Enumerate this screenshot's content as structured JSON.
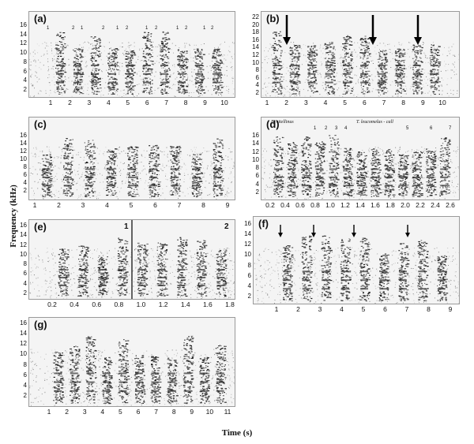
{
  "axis_labels": {
    "y": "Frequency (kHz)",
    "x": "Time (s)"
  },
  "chart_data": [
    {
      "type": "spectrogram",
      "panel": "(a)",
      "y_ticks": [
        "16",
        "14",
        "12",
        "10",
        "8",
        "6",
        "4",
        "2"
      ],
      "x_ticks": [
        "1",
        "2",
        "3",
        "4",
        "5",
        "6",
        "7",
        "8",
        "9",
        "10"
      ],
      "call_labels": [
        "1",
        "2",
        "1",
        "2",
        "1",
        "2",
        "1",
        "2",
        "1",
        "2",
        "1",
        "2"
      ]
    },
    {
      "type": "spectrogram",
      "panel": "(b)",
      "y_ticks": [
        "22",
        "20",
        "18",
        "16",
        "14",
        "12",
        "10",
        "8",
        "6",
        "4",
        "2"
      ],
      "x_ticks": [
        "1",
        "2",
        "3",
        "4",
        "5",
        "6",
        "7",
        "8",
        "9",
        "10"
      ]
    },
    {
      "type": "spectrogram",
      "panel": "(c)",
      "y_ticks": [
        "16",
        "14",
        "12",
        "10",
        "8",
        "6",
        "4",
        "2"
      ],
      "x_ticks": [
        "1",
        "2",
        "3",
        "4",
        "5",
        "6",
        "7",
        "8",
        "9"
      ]
    },
    {
      "type": "spectrogram",
      "panel": "(d)",
      "y_ticks": [
        "16",
        "14",
        "12",
        "10",
        "8",
        "6",
        "4",
        "2"
      ],
      "x_ticks": [
        "0.2",
        "0.4",
        "0.6",
        "0.8",
        "1.0",
        "1.2",
        "1.4",
        "1.6",
        "1.8",
        "2.0",
        "2.2",
        "2.4",
        "2.6"
      ],
      "species_labels": [
        "B. vitellinus",
        "T. leucomelas - call"
      ],
      "call_labels": [
        "1",
        "2",
        "3",
        "4",
        "5",
        "6",
        "7"
      ]
    },
    {
      "type": "spectrogram",
      "panel": "(e)",
      "y_ticks": [
        "16",
        "14",
        "12",
        "10",
        "8",
        "6",
        "4",
        "2"
      ],
      "x_ticks": [
        "0.2",
        "0.4",
        "0.6",
        "0.8",
        "1.0",
        "1.2",
        "1.4",
        "1.6",
        "1.8"
      ],
      "section_labels": [
        "1",
        "2"
      ]
    },
    {
      "type": "spectrogram",
      "panel": "(f)",
      "y_ticks": [
        "16",
        "14",
        "12",
        "10",
        "8",
        "6",
        "4",
        "2"
      ],
      "x_ticks": [
        "1",
        "2",
        "3",
        "4",
        "5",
        "6",
        "7",
        "8",
        "9"
      ]
    },
    {
      "type": "spectrogram",
      "panel": "(g)",
      "y_ticks": [
        "16",
        "14",
        "12",
        "10",
        "8",
        "6",
        "4",
        "2"
      ],
      "x_ticks": [
        "1",
        "2",
        "3",
        "4",
        "5",
        "6",
        "7",
        "8",
        "9",
        "10",
        "11"
      ]
    }
  ]
}
